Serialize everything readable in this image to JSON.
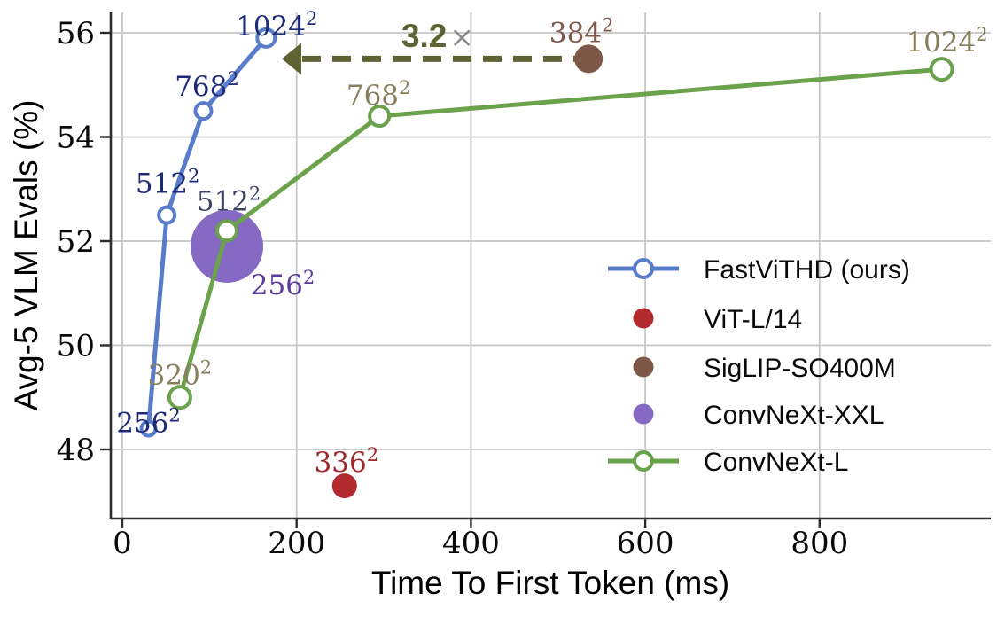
{
  "chart_data": {
    "type": "scatter",
    "title": "",
    "xlabel": "Time To First Token (ms)",
    "ylabel": "Avg-5 VLM Evals (%)",
    "xticks": [
      0,
      200,
      400,
      600,
      800
    ],
    "yticks": [
      48,
      50,
      52,
      54,
      56
    ],
    "xlim": [
      -13,
      1000
    ],
    "ylim": [
      46.6,
      56.4
    ],
    "grid": true,
    "legend_position": "lower right",
    "series": [
      {
        "name": "FastViTHD (ours)",
        "kind": "line",
        "marker": "open-circle",
        "color": "#587bca",
        "label_color": "#1d2a77",
        "points": [
          {
            "x": 30,
            "y": 48.4,
            "lbl": "256",
            "sup": "2",
            "r": 8,
            "ldx": 0,
            "ldy": 4
          },
          {
            "x": 51,
            "y": 52.5,
            "lbl": "512",
            "sup": "2",
            "r": 9,
            "ldx": 1,
            "ldy": -25
          },
          {
            "x": 93,
            "y": 54.5,
            "lbl": "768",
            "sup": "2",
            "r": 9,
            "ldx": 4,
            "ldy": -17
          },
          {
            "x": 165,
            "y": 55.9,
            "lbl": "1024",
            "sup": "2",
            "r": 10,
            "ldx": 12,
            "ldy": -3
          }
        ]
      },
      {
        "name": "ViT-L/14",
        "kind": "scatter",
        "marker": "dot",
        "color": "#b2292e",
        "label_color": "#9f2629",
        "points": [
          {
            "x": 255,
            "y": 47.3,
            "lbl": "336",
            "sup": "2",
            "r": 14,
            "ldx": 2,
            "ldy": -16
          }
        ]
      },
      {
        "name": "SigLIP-SO400M",
        "kind": "scatter",
        "marker": "dot",
        "color": "#7d5848",
        "label_color": "#7c584b",
        "points": [
          {
            "x": 535,
            "y": 55.5,
            "lbl": "384",
            "sup": "2",
            "r": 16,
            "ldx": -8,
            "ldy": -19
          }
        ]
      },
      {
        "name": "ConvNeXt-XXL",
        "kind": "scatter",
        "marker": "dot",
        "color": "#8669c2",
        "label_color": "#5b3d9f",
        "points": [
          {
            "x": 120,
            "y": 51.9,
            "lbl": "256",
            "sup": "2",
            "r": 41,
            "ldx": 63,
            "ldy": 54
          }
        ]
      },
      {
        "name": "ConvNeXt-L",
        "kind": "line",
        "marker": "open-circle",
        "color": "#6ba24c",
        "label_color": "#86805f",
        "points": [
          {
            "x": 66,
            "y": 49.0,
            "lbl": "320",
            "sup": "2",
            "r": 12,
            "ldx": 0,
            "ldy": -15
          },
          {
            "x": 120,
            "y": 52.2,
            "lbl": "512",
            "sup": "2",
            "r": 11,
            "ldx": 2,
            "ldy": -23,
            "label_color": "#3e4563"
          },
          {
            "x": 295,
            "y": 54.4,
            "lbl": "768",
            "sup": "2",
            "r": 11,
            "ldx": -1,
            "ldy": -13
          },
          {
            "x": 940,
            "y": 55.3,
            "lbl": "1024",
            "sup": "2",
            "r": 12,
            "ldx": 6,
            "ldy": -20
          }
        ]
      }
    ],
    "annotation": {
      "speedup": "3.2",
      "times": "×",
      "arrow_y": 55.5,
      "arrow_from_ms": 519,
      "arrow_to_ms": 183,
      "arrow_color": "#5f6233",
      "times_color": "#8a8a8a"
    }
  },
  "legend": {
    "items": [
      {
        "label": "FastViTHD (ours)"
      },
      {
        "label": "ViT-L/14"
      },
      {
        "label": "SigLIP-SO400M"
      },
      {
        "label": "ConvNeXt-XXL"
      },
      {
        "label": "ConvNeXt-L"
      }
    ]
  },
  "style": {
    "grid_color": "#c6c6c6",
    "spine_color": "#2e2e2e",
    "tick_label_color": "#0a0a0a",
    "legend_text_color": "#0a0a0a"
  }
}
